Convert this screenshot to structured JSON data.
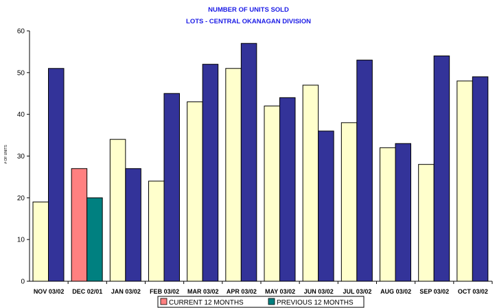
{
  "chart_data": {
    "type": "bar",
    "title": "NUMBER OF UNITS SOLD",
    "subtitle": "LOTS - CENTRAL OKANAGAN DIVISION",
    "ylabel": "# OF UNITS",
    "xlabel": "",
    "ylim": [
      0,
      60
    ],
    "yticks": [
      0,
      10,
      20,
      30,
      40,
      50,
      60
    ],
    "grid": false,
    "legend_position": "bottom",
    "categories": [
      "NOV 03/02",
      "DEC 02/01",
      "JAN 03/02",
      "FEB 03/02",
      "MAR 03/02",
      "APR 03/02",
      "MAY 03/02",
      "JUN 03/02",
      "JUL 03/02",
      "AUG 03/02",
      "SEP 03/02",
      "OCT 03/02"
    ],
    "series": [
      {
        "name": "CURRENT 12 MONTHS",
        "color": "#ffffcc",
        "values": [
          19,
          27,
          34,
          24,
          43,
          51,
          42,
          47,
          38,
          32,
          28,
          48
        ]
      },
      {
        "name": "PREVIOUS 12 MONTHS",
        "color": "#333399",
        "values": [
          51,
          20,
          27,
          45,
          52,
          57,
          44,
          36,
          53,
          33,
          54,
          49
        ]
      }
    ],
    "highlight": {
      "category_index": 1,
      "colors": [
        "#ff8080",
        "#008080"
      ]
    }
  }
}
